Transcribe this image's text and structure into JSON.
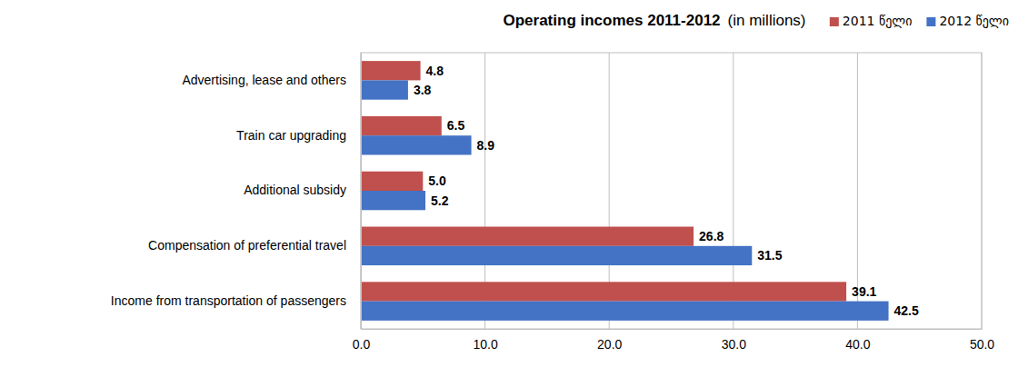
{
  "chart_data": {
    "type": "bar",
    "orientation": "horizontal",
    "title": "Operating incomes  2011-2012",
    "subtitle": "(in millions)",
    "categories": [
      "Advertising, lease and others",
      "Train car upgrading",
      "Additional subsidy",
      "Compensation of preferential travel",
      "Income from transportation of passengers"
    ],
    "series": [
      {
        "name": "2011 წელი",
        "color": "#c0504d",
        "values": [
          4.8,
          6.5,
          5.0,
          26.8,
          39.1
        ],
        "value_labels": [
          "4.8",
          "6.5",
          "5.0",
          "26.8",
          "39.1"
        ]
      },
      {
        "name": "2012 წელი",
        "color": "#4472c4",
        "values": [
          3.8,
          8.9,
          5.2,
          31.5,
          42.5
        ],
        "value_labels": [
          "3.8",
          "8.9",
          "5.2",
          "31.5",
          "42.5"
        ]
      }
    ],
    "xlim": [
      0,
      50
    ],
    "xticks": [
      {
        "value": 0,
        "label": "0.0"
      },
      {
        "value": 10,
        "label": "10.0"
      },
      {
        "value": 20,
        "label": "20.0"
      },
      {
        "value": 30,
        "label": "30.0"
      },
      {
        "value": 40,
        "label": "40.0"
      },
      {
        "value": 50,
        "label": "50.0"
      }
    ],
    "grid": true,
    "legend": "top-right",
    "data_labels": true
  }
}
